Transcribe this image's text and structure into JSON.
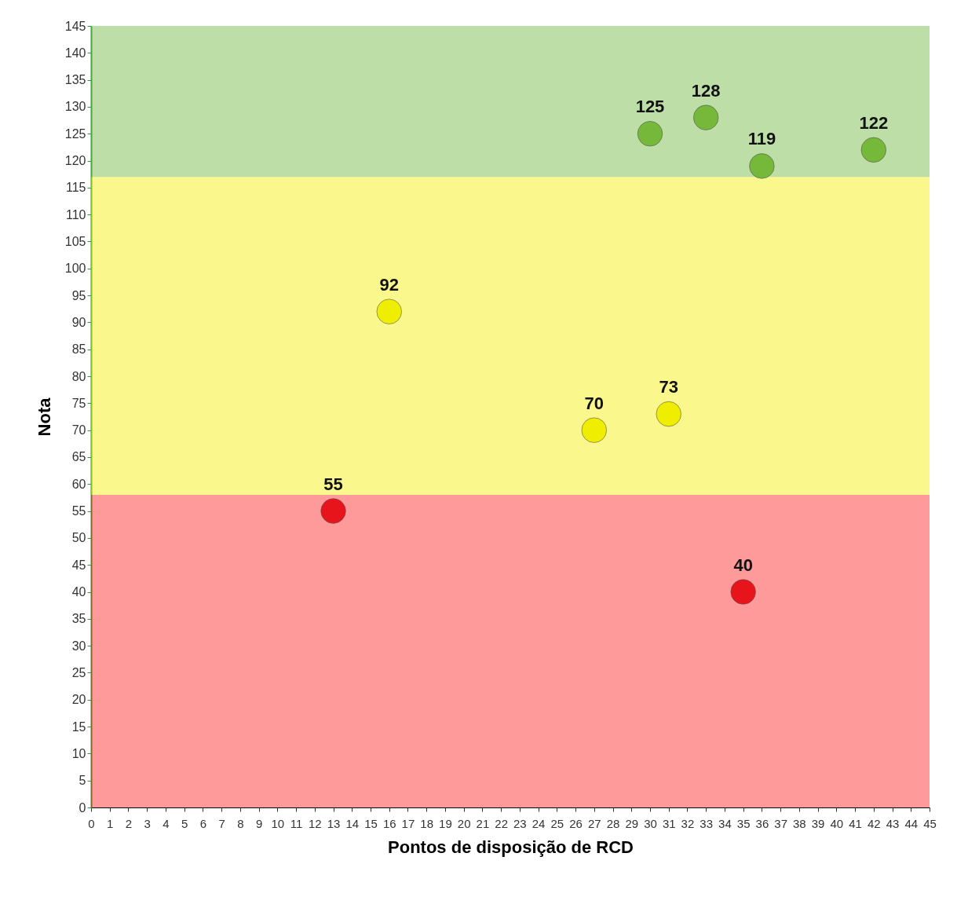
{
  "chart_data": {
    "type": "scatter",
    "xlabel": "Pontos de disposição de RCD",
    "ylabel": "Nota",
    "xlim": [
      0,
      45
    ],
    "xticks": [
      0,
      1,
      2,
      3,
      4,
      5,
      6,
      7,
      8,
      9,
      10,
      11,
      12,
      13,
      14,
      15,
      16,
      17,
      18,
      19,
      20,
      21,
      22,
      23,
      24,
      25,
      26,
      27,
      28,
      29,
      30,
      31,
      32,
      33,
      34,
      35,
      36,
      37,
      38,
      39,
      40,
      41,
      42,
      43,
      44,
      45
    ],
    "ylim": [
      0,
      145
    ],
    "yticks": [
      0,
      5,
      10,
      15,
      20,
      25,
      30,
      35,
      40,
      45,
      50,
      55,
      60,
      65,
      70,
      75,
      80,
      85,
      90,
      95,
      100,
      105,
      110,
      115,
      120,
      125,
      130,
      135,
      140,
      145
    ],
    "series": [
      {
        "color": "#e8141b",
        "x": [
          13,
          35
        ],
        "values": [
          55,
          40
        ]
      },
      {
        "color": "#f0ee00",
        "x": [
          16,
          27,
          31
        ],
        "values": [
          92,
          70,
          73
        ]
      },
      {
        "color": "#76b83a",
        "x": [
          30,
          33,
          36,
          42
        ],
        "values": [
          125,
          128,
          119,
          122
        ]
      }
    ],
    "bands": [
      {
        "axis": "y",
        "from": 0,
        "to": 58,
        "color": "#ff2020"
      },
      {
        "axis": "y",
        "from": 58,
        "to": 117,
        "color": "#f5f000"
      },
      {
        "axis": "y",
        "from": 117,
        "to": 145,
        "color": "#6cb83c"
      }
    ],
    "marker": "circle",
    "data_labels": true
  }
}
